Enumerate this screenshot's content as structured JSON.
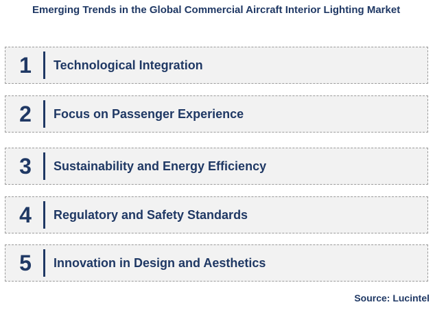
{
  "header": {
    "title": "Emerging Trends in the Global Commercial Aircraft Interior Lighting Market"
  },
  "items": [
    {
      "number": "1",
      "label": "Technological Integration"
    },
    {
      "number": "2",
      "label": "Focus on Passenger Experience"
    },
    {
      "number": "3",
      "label": "Sustainability and Energy Efficiency"
    },
    {
      "number": "4",
      "label": "Regulatory and Safety Standards"
    },
    {
      "number": "5",
      "label": "Innovation in Design and Aesthetics"
    }
  ],
  "footer": {
    "source": "Source: Lucintel"
  }
}
